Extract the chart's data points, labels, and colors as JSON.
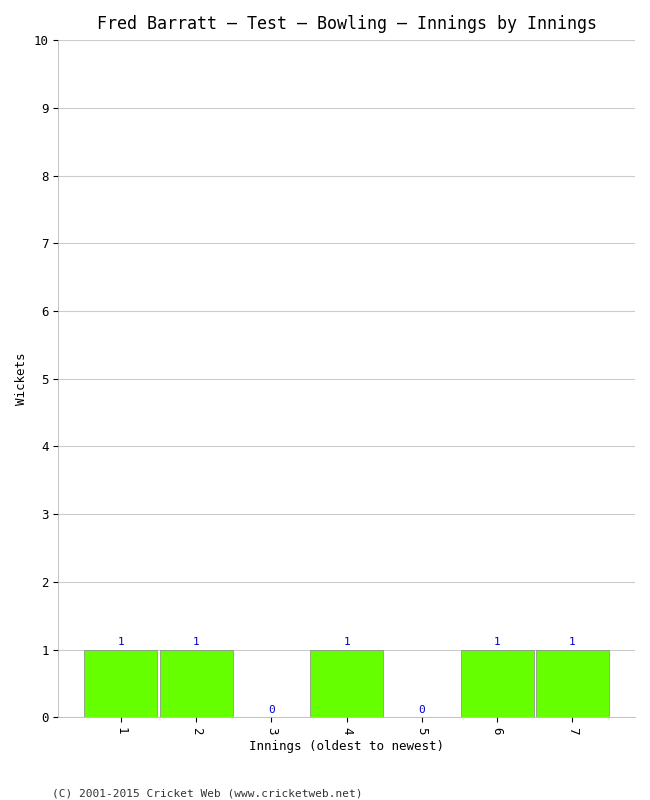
{
  "title": "Fred Barratt – Test – Bowling – Innings by Innings",
  "xlabel": "Innings (oldest to newest)",
  "ylabel": "Wickets",
  "categories": [
    "1",
    "2",
    "3",
    "4",
    "5",
    "6",
    "7"
  ],
  "values": [
    1,
    1,
    0,
    1,
    0,
    1,
    1
  ],
  "bar_color": "#66ff00",
  "bar_edge_color": "#888888",
  "value_color": "#0000cc",
  "ylim": [
    0,
    10
  ],
  "yticks": [
    0,
    1,
    2,
    3,
    4,
    5,
    6,
    7,
    8,
    9,
    10
  ],
  "background_color": "#ffffff",
  "grid_color": "#cccccc",
  "title_fontsize": 12,
  "axis_label_fontsize": 9,
  "tick_fontsize": 9,
  "value_fontsize": 8,
  "footer": "(C) 2001-2015 Cricket Web (www.cricketweb.net)",
  "footer_fontsize": 8,
  "bar_width": 0.97
}
